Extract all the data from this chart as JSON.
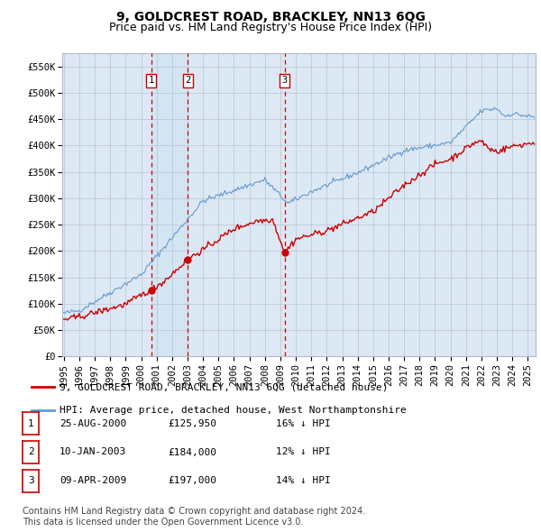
{
  "title": "9, GOLDCREST ROAD, BRACKLEY, NN13 6QG",
  "subtitle": "Price paid vs. HM Land Registry's House Price Index (HPI)",
  "ylim": [
    0,
    575000
  ],
  "yticks": [
    0,
    50000,
    100000,
    150000,
    200000,
    250000,
    300000,
    350000,
    400000,
    450000,
    500000,
    550000
  ],
  "ytick_labels": [
    "£0",
    "£50K",
    "£100K",
    "£150K",
    "£200K",
    "£250K",
    "£300K",
    "£350K",
    "£400K",
    "£450K",
    "£500K",
    "£550K"
  ],
  "xlim_start": 1994.9,
  "xlim_end": 2025.5,
  "sale_color": "#cc0000",
  "hpi_color": "#6699cc",
  "bg_color": "#dce9f5",
  "grid_color": "#b0b8cc",
  "transactions": [
    {
      "date_num": 2000.65,
      "price": 125950,
      "label": "1"
    },
    {
      "date_num": 2003.03,
      "price": 184000,
      "label": "2"
    },
    {
      "date_num": 2009.27,
      "price": 197000,
      "label": "3"
    }
  ],
  "legend_sale_label": "9, GOLDCREST ROAD, BRACKLEY, NN13 6QG (detached house)",
  "legend_hpi_label": "HPI: Average price, detached house, West Northamptonshire",
  "table_rows": [
    {
      "num": "1",
      "date": "25-AUG-2000",
      "price": "£125,950",
      "note": "16% ↓ HPI"
    },
    {
      "num": "2",
      "date": "10-JAN-2003",
      "price": "£184,000",
      "note": "12% ↓ HPI"
    },
    {
      "num": "3",
      "date": "09-APR-2009",
      "price": "£197,000",
      "note": "14% ↓ HPI"
    }
  ],
  "footer": "Contains HM Land Registry data © Crown copyright and database right 2024.\nThis data is licensed under the Open Government Licence v3.0.",
  "title_fontsize": 10,
  "subtitle_fontsize": 9,
  "tick_fontsize": 7.5,
  "legend_fontsize": 8,
  "table_fontsize": 8,
  "footer_fontsize": 7
}
